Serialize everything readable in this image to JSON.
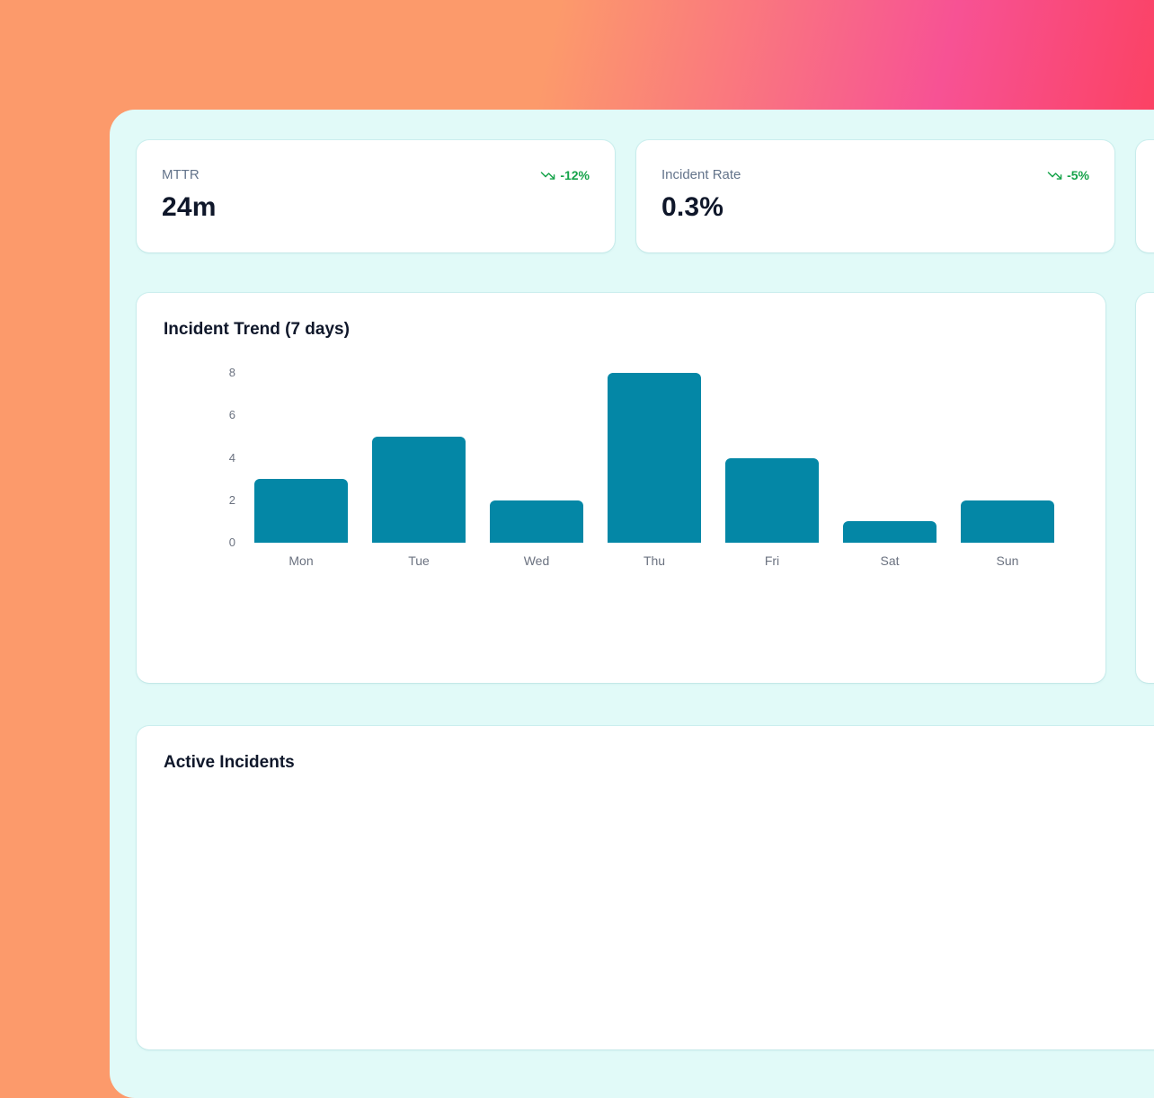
{
  "colors": {
    "gradient_orange": "#fc9a6b",
    "gradient_pink": "#f75294",
    "gradient_red": "#fd3b4e",
    "panel_bg": "#e1faf8",
    "card_bg": "#ffffff",
    "accent_green": "#16a34a",
    "bar_teal": "#0487a6",
    "label_gray": "#64748b",
    "value_dark": "#0f172a",
    "tick_gray": "#6b7280"
  },
  "stats": [
    {
      "label": "MTTR",
      "value": "24m",
      "delta": "-12%",
      "trend": "down",
      "delta_icon": "trending-down-icon"
    },
    {
      "label": "Incident Rate",
      "value": "0.3%",
      "delta": "-5%",
      "trend": "down",
      "delta_icon": "trending-down-icon"
    }
  ],
  "chart_card": {
    "title": "Incident Trend (7 days)"
  },
  "chart_data": {
    "type": "bar",
    "title": "Incident Trend (7 days)",
    "categories": [
      "Mon",
      "Tue",
      "Wed",
      "Thu",
      "Fri",
      "Sat",
      "Sun"
    ],
    "values": [
      3,
      5,
      2,
      8,
      4,
      1,
      2
    ],
    "xlabel": "",
    "ylabel": "",
    "yticks": [
      0,
      2,
      4,
      6,
      8
    ],
    "ylim": [
      0,
      8
    ],
    "grid": false,
    "legend": false,
    "bar_color": "#0487a6"
  },
  "incidents_card": {
    "title": "Active Incidents"
  }
}
